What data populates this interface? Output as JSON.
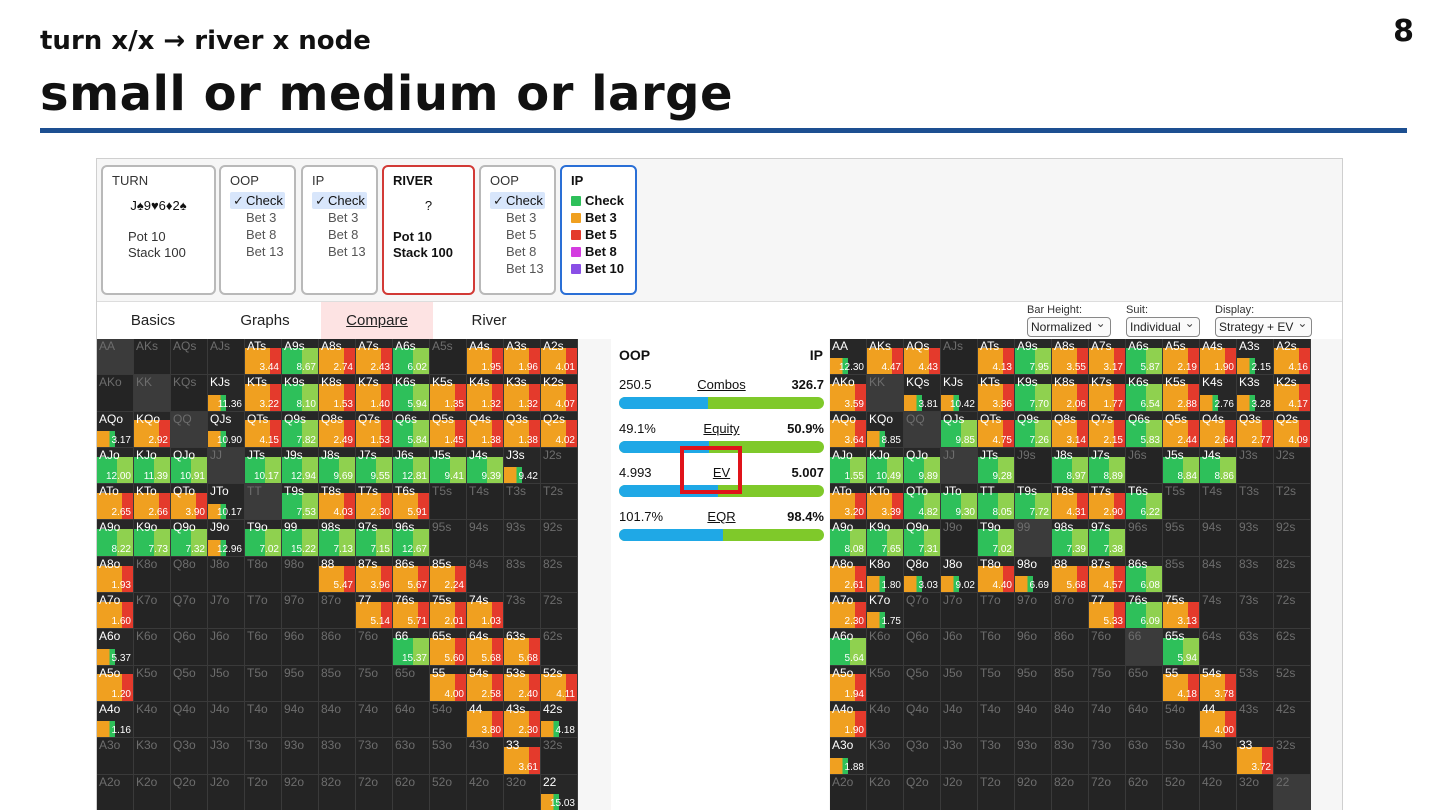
{
  "slide": {
    "subtitle": "turn x/x → river x node",
    "title": "small or medium or large",
    "page_number": "8"
  },
  "nodes": [
    {
      "title": "TURN",
      "board": "J♠9♥6♦2♠",
      "pot": "Pot 10",
      "stack": "Stack 100"
    },
    {
      "title": "OOP",
      "actions": [
        "Check",
        "Bet 3",
        "Bet 8",
        "Bet 13"
      ],
      "selected": 0
    },
    {
      "title": "IP",
      "actions": [
        "Check",
        "Bet 3",
        "Bet 8",
        "Bet 13"
      ],
      "selected": 0
    },
    {
      "title": "RIVER",
      "board": "?",
      "pot": "Pot 10",
      "stack": "Stack 100"
    },
    {
      "title": "OOP",
      "actions": [
        "Check",
        "Bet 3",
        "Bet 5",
        "Bet 8",
        "Bet 13"
      ],
      "selected": 0
    },
    {
      "title": "IP",
      "actions": [
        "Check",
        "Bet 3",
        "Bet 5",
        "Bet 8",
        "Bet 10"
      ],
      "colors": [
        "#2ec05a",
        "#f0a020",
        "#e43a2c",
        "#d43ce0",
        "#8a4fe6"
      ]
    }
  ],
  "tabs": [
    "Basics",
    "Graphs",
    "Compare",
    "River"
  ],
  "active_tab": "Compare",
  "controls": [
    {
      "label": "Bar Height:",
      "value": "Normalized"
    },
    {
      "label": "Suit:",
      "value": "Individual"
    },
    {
      "label": "Display:",
      "value": "Strategy + EV"
    }
  ],
  "compare": {
    "left_label": "OOP",
    "right_label": "IP",
    "rows": [
      {
        "name": "Combos",
        "left": "250.5",
        "right": "326.7",
        "left_share": 0.434
      },
      {
        "name": "Equity",
        "left": "49.1%",
        "right": "50.9%",
        "left_share": 0.439
      },
      {
        "name": "EV",
        "left": "4.993",
        "right": "5.007",
        "left_share": 0.485
      },
      {
        "name": "EQR",
        "left": "101.7%",
        "right": "98.4%",
        "left_share": 0.508
      }
    ]
  },
  "colors": {
    "check": "#2ec05a",
    "bet_small": "#f0a020",
    "bet_medium": "#e43a2c",
    "green_light": "#8fd14f",
    "dark": "#272727"
  },
  "matrix_labels": [
    [
      "AA",
      "AKs",
      "AQs",
      "AJs",
      "ATs",
      "A9s",
      "A8s",
      "A7s",
      "A6s",
      "A5s",
      "A4s",
      "A3s",
      "A2s"
    ],
    [
      "AKo",
      "KK",
      "KQs",
      "KJs",
      "KTs",
      "K9s",
      "K8s",
      "K7s",
      "K6s",
      "K5s",
      "K4s",
      "K3s",
      "K2s"
    ],
    [
      "AQo",
      "KQo",
      "QQ",
      "QJs",
      "QTs",
      "Q9s",
      "Q8s",
      "Q7s",
      "Q6s",
      "Q5s",
      "Q4s",
      "Q3s",
      "Q2s"
    ],
    [
      "AJo",
      "KJo",
      "QJo",
      "JJ",
      "JTs",
      "J9s",
      "J8s",
      "J7s",
      "J6s",
      "J5s",
      "J4s",
      "J3s",
      "J2s"
    ],
    [
      "ATo",
      "KTo",
      "QTo",
      "JTo",
      "TT",
      "T9s",
      "T8s",
      "T7s",
      "T6s",
      "T5s",
      "T4s",
      "T3s",
      "T2s"
    ],
    [
      "A9o",
      "K9o",
      "Q9o",
      "J9o",
      "T9o",
      "99",
      "98s",
      "97s",
      "96s",
      "95s",
      "94s",
      "93s",
      "92s"
    ],
    [
      "A8o",
      "K8o",
      "Q8o",
      "J8o",
      "T8o",
      "98o",
      "88",
      "87s",
      "86s",
      "85s",
      "84s",
      "83s",
      "82s"
    ],
    [
      "A7o",
      "K7o",
      "Q7o",
      "J7o",
      "T7o",
      "97o",
      "87o",
      "77",
      "76s",
      "75s",
      "74s",
      "73s",
      "72s"
    ],
    [
      "A6o",
      "K6o",
      "Q6o",
      "J6o",
      "T6o",
      "96o",
      "86o",
      "76o",
      "66",
      "65s",
      "64s",
      "63s",
      "62s"
    ],
    [
      "A5o",
      "K5o",
      "Q5o",
      "J5o",
      "T5o",
      "95o",
      "85o",
      "75o",
      "65o",
      "55",
      "54s",
      "53s",
      "52s"
    ],
    [
      "A4o",
      "K4o",
      "Q4o",
      "J4o",
      "T4o",
      "94o",
      "84o",
      "74o",
      "64o",
      "54o",
      "44",
      "43s",
      "42s"
    ],
    [
      "A3o",
      "K3o",
      "Q3o",
      "J3o",
      "T3o",
      "93o",
      "83o",
      "73o",
      "63o",
      "53o",
      "43o",
      "33",
      "32s"
    ],
    [
      "A2o",
      "K2o",
      "Q2o",
      "J2o",
      "T2o",
      "92o",
      "82o",
      "72o",
      "62o",
      "52o",
      "42o",
      "32o",
      "22"
    ]
  ],
  "oop_matrix": {
    "ev": [
      [
        "",
        "",
        "",
        "",
        "3.44",
        "8.67",
        "2.74",
        "2.43",
        "6.02",
        "",
        "1.95",
        "1.96",
        "4.01"
      ],
      [
        "",
        "",
        "",
        "11.36",
        "3.22",
        "8.10",
        "1.53",
        "1.40",
        "5.94",
        "1.35",
        "1.32",
        "1.32",
        "4.07"
      ],
      [
        "3.17",
        "2.92",
        "",
        "10.90",
        "4.15",
        "7.82",
        "2.49",
        "1.53",
        "5.84",
        "1.45",
        "1.38",
        "1.38",
        "4.02"
      ],
      [
        "12.00",
        "11.39",
        "10.91",
        "",
        "10.17",
        "12.94",
        "9.69",
        "9.55",
        "12.81",
        "9.41",
        "9.39",
        "9.42",
        ""
      ],
      [
        "2.65",
        "2.66",
        "3.90",
        "10.17",
        "",
        "7.53",
        "4.03",
        "2.30",
        "5.91",
        "",
        "",
        "",
        ""
      ],
      [
        "8.22",
        "7.73",
        "7.32",
        "12.96",
        "7.02",
        "15.22",
        "7.13",
        "7.15",
        "12.67",
        "",
        "",
        "",
        ""
      ],
      [
        "1.93",
        "",
        "",
        "",
        "",
        "",
        "5.47",
        "3.96",
        "5.67",
        "2.24",
        "",
        "",
        ""
      ],
      [
        "1.60",
        "",
        "",
        "",
        "",
        "",
        "",
        "5.14",
        "5.71",
        "2.01",
        "1.03",
        "",
        ""
      ],
      [
        "5.37",
        "",
        "",
        "",
        "",
        "",
        "",
        "",
        "15.37",
        "5.60",
        "5.68",
        "5.68",
        ""
      ],
      [
        "1.20",
        "",
        "",
        "",
        "",
        "",
        "",
        "",
        "",
        "4.00",
        "2.58",
        "2.40",
        "4.11"
      ],
      [
        "1.16",
        "",
        "",
        "",
        "",
        "",
        "",
        "",
        "",
        "",
        "3.80",
        "2.30",
        "4.18"
      ],
      [
        "",
        "",
        "",
        "",
        "",
        "",
        "",
        "",
        "",
        "",
        "",
        "3.61",
        ""
      ],
      [
        "",
        "",
        "",
        "",
        "",
        "",
        "",
        "",
        "",
        "",
        "",
        "",
        "15.03"
      ]
    ],
    "type": [
      [
        "d",
        "d",
        "d",
        "d",
        "o",
        "g",
        "o",
        "o",
        "g",
        "d",
        "o",
        "o",
        "o"
      ],
      [
        "d",
        "d",
        "d",
        "x",
        "o",
        "g",
        "o",
        "o",
        "g",
        "o",
        "o",
        "o",
        "o"
      ],
      [
        "x",
        "o",
        "d",
        "x",
        "o",
        "g",
        "o",
        "o",
        "g",
        "o",
        "o",
        "o",
        "o"
      ],
      [
        "g",
        "g",
        "g",
        "d",
        "g",
        "g",
        "g",
        "g",
        "g",
        "g",
        "g",
        "x",
        "d"
      ],
      [
        "o",
        "o",
        "o",
        "x",
        "d",
        "g",
        "o",
        "o",
        "o",
        "d",
        "d",
        "d",
        "d"
      ],
      [
        "g",
        "g",
        "g",
        "x",
        "g",
        "g",
        "g",
        "g",
        "g",
        "d",
        "d",
        "d",
        "d"
      ],
      [
        "o",
        "d",
        "d",
        "d",
        "d",
        "d",
        "o",
        "o",
        "o",
        "o",
        "d",
        "d",
        "d"
      ],
      [
        "o",
        "d",
        "d",
        "d",
        "d",
        "d",
        "d",
        "o",
        "o",
        "o",
        "o",
        "d",
        "d"
      ],
      [
        "x",
        "d",
        "d",
        "d",
        "d",
        "d",
        "d",
        "d",
        "g",
        "o",
        "o",
        "o",
        "d"
      ],
      [
        "o",
        "d",
        "d",
        "d",
        "d",
        "d",
        "d",
        "d",
        "d",
        "o",
        "o",
        "o",
        "o"
      ],
      [
        "x",
        "d",
        "d",
        "d",
        "d",
        "d",
        "d",
        "d",
        "d",
        "d",
        "o",
        "o",
        "x"
      ],
      [
        "d",
        "d",
        "d",
        "d",
        "d",
        "d",
        "d",
        "d",
        "d",
        "d",
        "d",
        "o",
        "d"
      ],
      [
        "d",
        "d",
        "d",
        "d",
        "d",
        "d",
        "d",
        "d",
        "d",
        "d",
        "d",
        "d",
        "x"
      ]
    ]
  },
  "ip_matrix": {
    "ev": [
      [
        "12.30",
        "4.47",
        "4.43",
        "",
        "4.13",
        "7.95",
        "3.55",
        "3.17",
        "5.87",
        "2.19",
        "1.90",
        "2.15",
        "4.16"
      ],
      [
        "3.59",
        "",
        "3.81",
        "10.42",
        "3.36",
        "7.70",
        "2.06",
        "1.77",
        "6.54",
        "2.88",
        "2.76",
        "3.28",
        "4.17"
      ],
      [
        "3.64",
        "8.85",
        "",
        "9.85",
        "4.75",
        "7.26",
        "3.14",
        "2.15",
        "5.83",
        "2.44",
        "2.64",
        "2.77",
        "4.09"
      ],
      [
        "1.55",
        "10.49",
        "9.89",
        "",
        "9.28",
        "",
        "8.97",
        "8.89",
        "",
        "8.84",
        "8.86",
        "",
        ""
      ],
      [
        "3.20",
        "3.39",
        "4.82",
        "9.30",
        "8.05",
        "7.72",
        "4.31",
        "2.90",
        "6.22",
        "",
        "",
        "",
        ""
      ],
      [
        "8.08",
        "7.65",
        "7.31",
        "",
        "7.02",
        "",
        "7.39",
        "7.38",
        "",
        "",
        "",
        "",
        ""
      ],
      [
        "2.61",
        "1.80",
        "3.03",
        "9.02",
        "4.40",
        "6.69",
        "5.68",
        "4.57",
        "6.08",
        "",
        "",
        "",
        ""
      ],
      [
        "2.30",
        "1.75",
        "",
        "",
        "",
        "",
        "",
        "5.33",
        "6.09",
        "3.13",
        "",
        "",
        ""
      ],
      [
        "5.64",
        "",
        "",
        "",
        "",
        "",
        "",
        "",
        "",
        "5.94",
        "",
        "",
        ""
      ],
      [
        "1.94",
        "",
        "",
        "",
        "",
        "",
        "",
        "",
        "",
        "4.18",
        "3.78",
        "",
        ""
      ],
      [
        "1.90",
        "",
        "",
        "",
        "",
        "",
        "",
        "",
        "",
        "",
        "4.00",
        "",
        ""
      ],
      [
        "1.88",
        "",
        "",
        "",
        "",
        "",
        "",
        "",
        "",
        "",
        "",
        "3.72",
        ""
      ],
      [
        "",
        "",
        "",
        "",
        "",
        "",
        "",
        "",
        "",
        "",
        "",
        "",
        ""
      ]
    ],
    "type": [
      [
        "x",
        "o",
        "o",
        "d",
        "o",
        "g",
        "o",
        "o",
        "g",
        "o",
        "o",
        "x",
        "o"
      ],
      [
        "o",
        "d",
        "x",
        "x",
        "o",
        "g",
        "o",
        "o",
        "g",
        "o",
        "x",
        "x",
        "o"
      ],
      [
        "o",
        "x",
        "d",
        "g",
        "o",
        "g",
        "o",
        "o",
        "g",
        "o",
        "o",
        "o",
        "o"
      ],
      [
        "g",
        "g",
        "g",
        "d",
        "g",
        "d",
        "g",
        "g",
        "d",
        "g",
        "g",
        "d",
        "d"
      ],
      [
        "o",
        "o",
        "g",
        "g",
        "g",
        "g",
        "o",
        "o",
        "g",
        "d",
        "d",
        "d",
        "d"
      ],
      [
        "g",
        "g",
        "g",
        "d",
        "g",
        "d",
        "g",
        "g",
        "d",
        "d",
        "d",
        "d",
        "d"
      ],
      [
        "o",
        "x",
        "x",
        "x",
        "o",
        "x",
        "o",
        "o",
        "g",
        "d",
        "d",
        "d",
        "d"
      ],
      [
        "o",
        "x",
        "d",
        "d",
        "d",
        "d",
        "d",
        "o",
        "g",
        "o",
        "d",
        "d",
        "d"
      ],
      [
        "g",
        "d",
        "d",
        "d",
        "d",
        "d",
        "d",
        "d",
        "d",
        "g",
        "d",
        "d",
        "d"
      ],
      [
        "o",
        "d",
        "d",
        "d",
        "d",
        "d",
        "d",
        "d",
        "d",
        "o",
        "o",
        "d",
        "d"
      ],
      [
        "o",
        "d",
        "d",
        "d",
        "d",
        "d",
        "d",
        "d",
        "d",
        "d",
        "o",
        "d",
        "d"
      ],
      [
        "x",
        "d",
        "d",
        "d",
        "d",
        "d",
        "d",
        "d",
        "d",
        "d",
        "d",
        "o",
        "d"
      ],
      [
        "d",
        "d",
        "d",
        "d",
        "d",
        "d",
        "d",
        "d",
        "d",
        "d",
        "d",
        "d",
        "d"
      ]
    ]
  }
}
